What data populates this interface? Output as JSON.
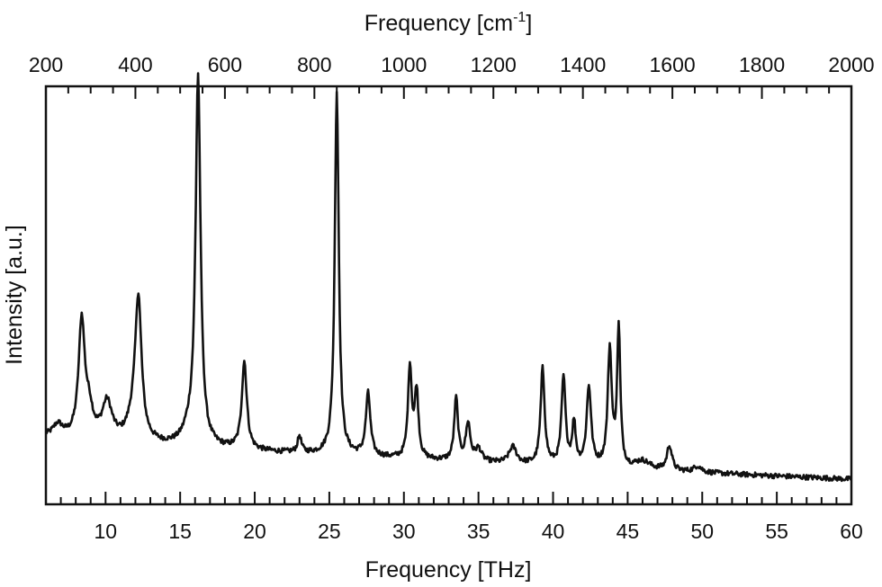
{
  "chart_data": {
    "type": "line",
    "title": "",
    "xlabel": "Frequency [THz]",
    "x2label": "Frequency [cm",
    "x2label_sup": "-1",
    "x2label_end": "]",
    "ylabel": "Intensity [a.u.]",
    "xlim": [
      6,
      60
    ],
    "x2lim": [
      200,
      2000
    ],
    "ylim": [
      0,
      1
    ],
    "grid": false,
    "legend": "none",
    "x_ticks": [
      "10",
      "15",
      "20",
      "25",
      "30",
      "35",
      "40",
      "45",
      "50",
      "55",
      "60"
    ],
    "x2_ticks": [
      "200",
      "400",
      "600",
      "800",
      "1000",
      "1200",
      "1400",
      "1600",
      "1800",
      "2000"
    ],
    "series": [
      {
        "peaks": [
          {
            "x": 6.8,
            "height": 0.03,
            "width": 0.4
          },
          {
            "x": 8.4,
            "height": 0.28,
            "width": 0.25
          },
          {
            "x": 8.9,
            "height": 0.06,
            "width": 0.3
          },
          {
            "x": 10.1,
            "height": 0.09,
            "width": 0.4
          },
          {
            "x": 11.9,
            "height": 0.05,
            "width": 0.5
          },
          {
            "x": 12.2,
            "height": 0.32,
            "width": 0.25
          },
          {
            "x": 16.2,
            "height": 0.88,
            "width": 0.2
          },
          {
            "x": 15.6,
            "height": 0.03,
            "width": 0.5
          },
          {
            "x": 19.3,
            "height": 0.21,
            "width": 0.2
          },
          {
            "x": 23.0,
            "height": 0.04,
            "width": 0.15
          },
          {
            "x": 25.5,
            "height": 0.87,
            "width": 0.16
          },
          {
            "x": 27.6,
            "height": 0.15,
            "width": 0.18
          },
          {
            "x": 30.4,
            "height": 0.22,
            "width": 0.15
          },
          {
            "x": 30.85,
            "height": 0.16,
            "width": 0.15
          },
          {
            "x": 33.5,
            "height": 0.15,
            "width": 0.15
          },
          {
            "x": 34.3,
            "height": 0.09,
            "width": 0.18
          },
          {
            "x": 35.0,
            "height": 0.03,
            "width": 0.25
          },
          {
            "x": 37.3,
            "height": 0.04,
            "width": 0.3
          },
          {
            "x": 39.3,
            "height": 0.23,
            "width": 0.16
          },
          {
            "x": 40.7,
            "height": 0.21,
            "width": 0.16
          },
          {
            "x": 41.4,
            "height": 0.1,
            "width": 0.14
          },
          {
            "x": 42.4,
            "height": 0.19,
            "width": 0.18
          },
          {
            "x": 43.8,
            "height": 0.28,
            "width": 0.16
          },
          {
            "x": 44.4,
            "height": 0.33,
            "width": 0.13
          },
          {
            "x": 46.0,
            "height": 0.02,
            "width": 0.6
          },
          {
            "x": 47.8,
            "height": 0.06,
            "width": 0.2
          },
          {
            "x": 49.7,
            "height": 0.015,
            "width": 0.3
          }
        ],
        "baseline_start": 0.16,
        "baseline_end": 0.06,
        "noise": 0.006,
        "color": "#111111"
      }
    ]
  }
}
